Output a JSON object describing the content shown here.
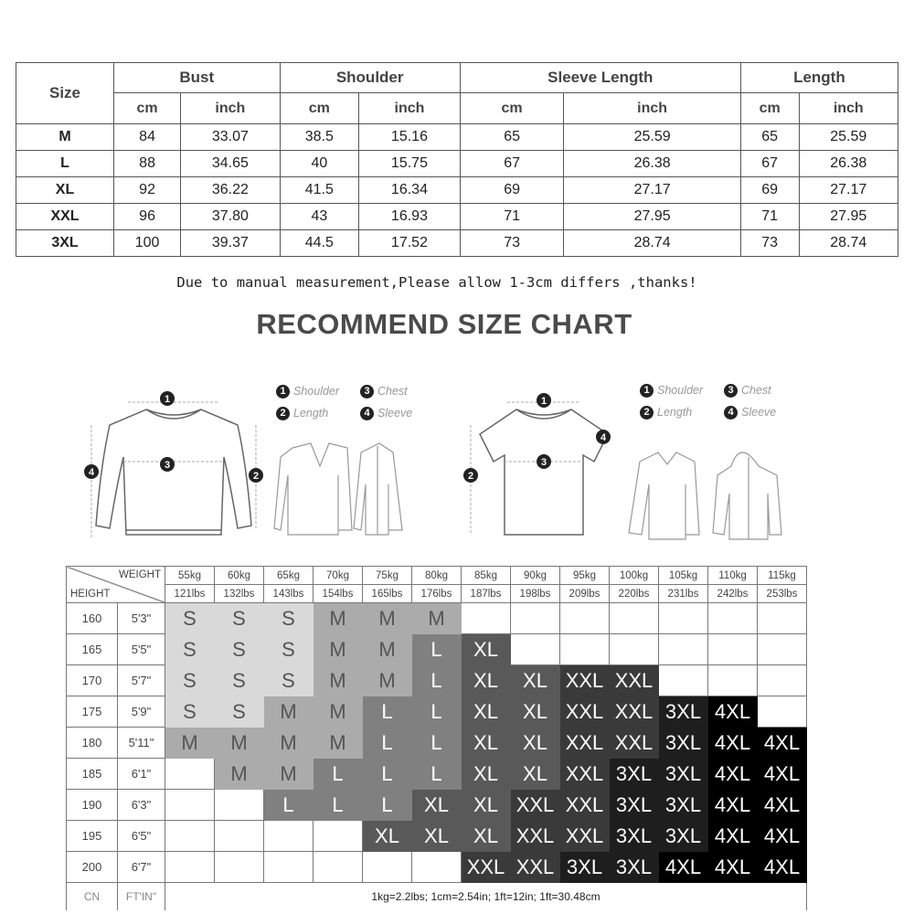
{
  "spec_table": {
    "size_header": "Size",
    "groups": [
      "Bust",
      "Shoulder",
      "Sleeve Length",
      "Length"
    ],
    "units": [
      "cm",
      "inch"
    ],
    "rows": [
      [
        "M",
        "84",
        "33.07",
        "38.5",
        "15.16",
        "65",
        "25.59",
        "65",
        "25.59"
      ],
      [
        "L",
        "88",
        "34.65",
        "40",
        "15.75",
        "67",
        "26.38",
        "67",
        "26.38"
      ],
      [
        "XL",
        "92",
        "36.22",
        "41.5",
        "16.34",
        "69",
        "27.17",
        "69",
        "27.17"
      ],
      [
        "XXL",
        "96",
        "37.80",
        "43",
        "16.93",
        "71",
        "27.95",
        "71",
        "27.95"
      ],
      [
        "3XL",
        "100",
        "39.37",
        "44.5",
        "17.52",
        "73",
        "28.74",
        "73",
        "28.74"
      ]
    ]
  },
  "note": "Due to manual measurement,Please allow 1-3cm differs ,thanks!",
  "title": "RECOMMEND SIZE CHART",
  "legend": [
    {
      "n": "1",
      "label": "Shoulder"
    },
    {
      "n": "3",
      "label": "Chest"
    },
    {
      "n": "2",
      "label": "Length"
    },
    {
      "n": "4",
      "label": "Sleeve"
    }
  ],
  "grid": {
    "weight_label": "WEIGHT",
    "height_label": "HEIGHT",
    "kg": [
      "55kg",
      "60kg",
      "65kg",
      "70kg",
      "75kg",
      "80kg",
      "85kg",
      "90kg",
      "95kg",
      "100kg",
      "105kg",
      "110kg",
      "115kg"
    ],
    "lbs": [
      "121lbs",
      "132lbs",
      "143lbs",
      "154lbs",
      "165lbs",
      "176lbs",
      "187lbs",
      "198lbs",
      "209lbs",
      "220lbs",
      "231lbs",
      "242lbs",
      "253lbs"
    ],
    "rows": [
      {
        "cm": "160",
        "ft": "5'3\"",
        "sizes": [
          "S",
          "S",
          "S",
          "M",
          "M",
          "M",
          "",
          "",
          "",
          "",
          "",
          "",
          ""
        ]
      },
      {
        "cm": "165",
        "ft": "5'5\"",
        "sizes": [
          "S",
          "S",
          "S",
          "M",
          "M",
          "L",
          "XL",
          "",
          "",
          "",
          "",
          "",
          ""
        ]
      },
      {
        "cm": "170",
        "ft": "5'7\"",
        "sizes": [
          "S",
          "S",
          "S",
          "M",
          "M",
          "L",
          "XL",
          "XL",
          "XXL",
          "XXL",
          "",
          "",
          ""
        ]
      },
      {
        "cm": "175",
        "ft": "5'9\"",
        "sizes": [
          "S",
          "S",
          "M",
          "M",
          "L",
          "L",
          "XL",
          "XL",
          "XXL",
          "XXL",
          "3XL",
          "4XL",
          ""
        ]
      },
      {
        "cm": "180",
        "ft": "5'11\"",
        "sizes": [
          "M",
          "M",
          "M",
          "M",
          "L",
          "L",
          "XL",
          "XL",
          "XXL",
          "XXL",
          "3XL",
          "4XL",
          "4XL"
        ]
      },
      {
        "cm": "185",
        "ft": "6'1\"",
        "sizes": [
          "",
          "M",
          "M",
          "L",
          "L",
          "L",
          "XL",
          "XL",
          "XXL",
          "3XL",
          "3XL",
          "4XL",
          "4XL"
        ]
      },
      {
        "cm": "190",
        "ft": "6'3\"",
        "sizes": [
          "",
          "",
          "L",
          "L",
          "L",
          "XL",
          "XL",
          "XXL",
          "XXL",
          "3XL",
          "3XL",
          "4XL",
          "4XL"
        ]
      },
      {
        "cm": "195",
        "ft": "6'5\"",
        "sizes": [
          "",
          "",
          "",
          "",
          "XL",
          "XL",
          "XL",
          "XXL",
          "XXL",
          "3XL",
          "3XL",
          "4XL",
          "4XL"
        ]
      },
      {
        "cm": "200",
        "ft": "6'7\"",
        "sizes": [
          "",
          "",
          "",
          "",
          "",
          "",
          "XXL",
          "XXL",
          "3XL",
          "3XL",
          "4XL",
          "4XL",
          "4XL"
        ]
      }
    ],
    "footer_cn": "CN",
    "footer_ft": "FT'IN\"",
    "conversion": "1kg=2.2lbs; 1cm=2.54in; 1ft=12in; 1ft=30.48cm"
  },
  "size_colors": {
    "S": "#d9d9d9",
    "M": "#ababab",
    "L": "#808080",
    "XL": "#595959",
    "XXL": "#3a3a3a",
    "3XL": "#1e1e1e",
    "4XL": "#000000"
  }
}
